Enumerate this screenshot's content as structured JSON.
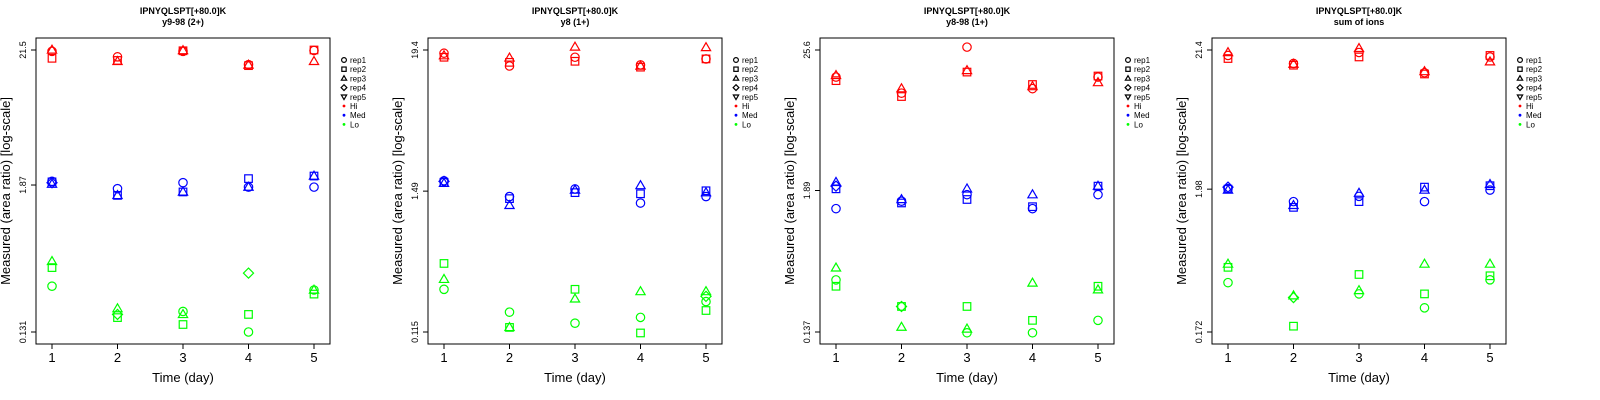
{
  "colors": {
    "Hi": "#ff0000",
    "Med": "#0000ff",
    "Lo": "#00ff00"
  },
  "legend": {
    "reps": [
      {
        "label": "rep1",
        "shape": "circle"
      },
      {
        "label": "rep2",
        "shape": "square"
      },
      {
        "label": "rep3",
        "shape": "triangle-up"
      },
      {
        "label": "rep4",
        "shape": "diamond"
      },
      {
        "label": "rep5",
        "shape": "triangle-down"
      }
    ],
    "groups": [
      {
        "label": "Hi",
        "color_key": "Hi"
      },
      {
        "label": "Med",
        "color_key": "Med"
      },
      {
        "label": "Lo",
        "color_key": "Lo"
      }
    ]
  },
  "chart_data": [
    {
      "type": "scatter",
      "title": "IPNYQLSPT[+80.0]K",
      "subtitle": "y9-98 (2+)",
      "xlabel": "Time (day)",
      "ylabel": "Measured (area ratio) [log-scale]",
      "yscale": "log",
      "ylim": [
        0.131,
        21.5
      ],
      "yticks": [
        {
          "value": 0.131,
          "label": "0.131"
        },
        {
          "value": 1.87,
          "label": "1.87"
        },
        {
          "value": 21.5,
          "label": "21.5"
        }
      ],
      "x": [
        1,
        2,
        3,
        4,
        5
      ],
      "grid": false,
      "legend_position": "right",
      "series": [
        {
          "group": "Hi",
          "rep": "rep1",
          "values": [
            21.0,
            19.0,
            21.0,
            16.5,
            21.3
          ]
        },
        {
          "group": "Hi",
          "rep": "rep2",
          "values": [
            18.5,
            17.8,
            21.2,
            16.2,
            21.5
          ]
        },
        {
          "group": "Hi",
          "rep": "rep3",
          "values": [
            21.5,
            17.5,
            21.3,
            16.4,
            17.5
          ]
        },
        {
          "group": "Med",
          "rep": "rep1",
          "values": [
            2.0,
            1.75,
            1.95,
            1.8,
            1.8
          ]
        },
        {
          "group": "Med",
          "rep": "rep2",
          "values": [
            1.98,
            1.55,
            1.65,
            2.1,
            2.2
          ]
        },
        {
          "group": "Med",
          "rep": "rep3",
          "values": [
            1.9,
            1.55,
            1.65,
            1.8,
            2.2
          ]
        },
        {
          "group": "Med",
          "rep": "rep4",
          "values": [
            1.95,
            null,
            null,
            null,
            null
          ]
        },
        {
          "group": "Lo",
          "rep": "rep1",
          "values": [
            0.3,
            null,
            0.19,
            0.131,
            0.28
          ]
        },
        {
          "group": "Lo",
          "rep": "rep2",
          "values": [
            0.42,
            0.17,
            0.15,
            0.18,
            0.26
          ]
        },
        {
          "group": "Lo",
          "rep": "rep3",
          "values": [
            0.47,
            0.2,
            0.18,
            null,
            0.28
          ]
        },
        {
          "group": "Lo",
          "rep": "rep4",
          "values": [
            null,
            0.18,
            null,
            0.38,
            null
          ]
        }
      ]
    },
    {
      "type": "scatter",
      "title": "IPNYQLSPT[+80.0]K",
      "subtitle": "y8 (1+)",
      "xlabel": "Time (day)",
      "ylabel": "Measured (area ratio) [log-scale]",
      "yscale": "log",
      "ylim": [
        0.115,
        19.4
      ],
      "yticks": [
        {
          "value": 0.115,
          "label": "0.115"
        },
        {
          "value": 1.49,
          "label": "1.49"
        },
        {
          "value": 19.4,
          "label": "19.4"
        }
      ],
      "x": [
        1,
        2,
        3,
        4,
        5
      ],
      "grid": false,
      "legend_position": "right",
      "series": [
        {
          "group": "Hi",
          "rep": "rep1",
          "values": [
            18.3,
            14.5,
            17.0,
            14.8,
            16.5
          ]
        },
        {
          "group": "Hi",
          "rep": "rep2",
          "values": [
            17.0,
            15.5,
            15.8,
            14.2,
            16.5
          ]
        },
        {
          "group": "Hi",
          "rep": "rep3",
          "values": [
            17.5,
            16.8,
            20.5,
            14.5,
            20.3
          ]
        },
        {
          "group": "Med",
          "rep": "rep1",
          "values": [
            1.8,
            1.35,
            1.55,
            1.2,
            1.35
          ]
        },
        {
          "group": "Med",
          "rep": "rep2",
          "values": [
            1.75,
            1.3,
            1.45,
            1.42,
            1.5
          ]
        },
        {
          "group": "Med",
          "rep": "rep3",
          "values": [
            1.72,
            1.15,
            1.52,
            1.65,
            1.45
          ]
        },
        {
          "group": "Med",
          "rep": "rep4",
          "values": [
            1.78,
            null,
            null,
            null,
            null
          ]
        },
        {
          "group": "Lo",
          "rep": "rep1",
          "values": [
            0.25,
            0.165,
            0.135,
            0.15,
            0.2
          ]
        },
        {
          "group": "Lo",
          "rep": "rep2",
          "values": [
            0.4,
            0.125,
            0.25,
            0.113,
            0.17
          ]
        },
        {
          "group": "Lo",
          "rep": "rep3",
          "values": [
            0.3,
            0.125,
            0.21,
            0.24,
            0.24
          ]
        },
        {
          "group": "Lo",
          "rep": "rep4",
          "values": [
            null,
            null,
            null,
            null,
            0.22
          ]
        }
      ]
    },
    {
      "type": "scatter",
      "title": "IPNYQLSPT[+80.0]K",
      "subtitle": "y8-98 (1+)",
      "xlabel": "Time (day)",
      "ylabel": "Measured (area ratio) [log-scale]",
      "yscale": "log",
      "ylim": [
        0.137,
        25.6
      ],
      "yticks": [
        {
          "value": 0.137,
          "label": "0.137"
        },
        {
          "value": 1.89,
          "label": "1.89"
        },
        {
          "value": 25.6,
          "label": "25.6"
        }
      ],
      "x": [
        1,
        2,
        3,
        4,
        5
      ],
      "grid": false,
      "legend_position": "right",
      "series": [
        {
          "group": "Hi",
          "rep": "rep1",
          "values": [
            15.5,
            11.5,
            27.0,
            12.5,
            15.5
          ]
        },
        {
          "group": "Hi",
          "rep": "rep2",
          "values": [
            14.5,
            10.8,
            17.0,
            13.5,
            15.8
          ]
        },
        {
          "group": "Hi",
          "rep": "rep3",
          "values": [
            16.0,
            12.5,
            17.5,
            13.0,
            14.0
          ]
        },
        {
          "group": "Med",
          "rep": "rep1",
          "values": [
            1.35,
            1.55,
            1.75,
            1.35,
            1.75
          ]
        },
        {
          "group": "Med",
          "rep": "rep2",
          "values": [
            1.95,
            1.5,
            1.6,
            1.4,
            2.05
          ]
        },
        {
          "group": "Med",
          "rep": "rep3",
          "values": [
            2.2,
            1.6,
            1.95,
            1.75,
            2.05
          ]
        },
        {
          "group": "Med",
          "rep": "rep4",
          "values": [
            2.05,
            null,
            null,
            null,
            null
          ]
        },
        {
          "group": "Lo",
          "rep": "rep1",
          "values": [
            0.36,
            null,
            0.135,
            0.135,
            0.17
          ]
        },
        {
          "group": "Lo",
          "rep": "rep2",
          "values": [
            0.32,
            0.22,
            0.22,
            0.17,
            0.32
          ]
        },
        {
          "group": "Lo",
          "rep": "rep3",
          "values": [
            0.45,
            0.15,
            0.145,
            0.34,
            0.3
          ]
        },
        {
          "group": "Lo",
          "rep": "rep4",
          "values": [
            null,
            0.22,
            null,
            null,
            null
          ]
        }
      ]
    },
    {
      "type": "scatter",
      "title": "IPNYQLSPT[+80.0]K",
      "subtitle": "sum of ions",
      "xlabel": "Time (day)",
      "ylabel": "Measured (area ratio) [log-scale]",
      "yscale": "log",
      "ylim": [
        0.172,
        21.4
      ],
      "yticks": [
        {
          "value": 0.172,
          "label": "0.172"
        },
        {
          "value": 1.98,
          "label": "1.98"
        },
        {
          "value": 21.4,
          "label": "21.4"
        }
      ],
      "x": [
        1,
        2,
        3,
        4,
        5
      ],
      "grid": false,
      "legend_position": "right",
      "series": [
        {
          "group": "Hi",
          "rep": "rep1",
          "values": [
            19.5,
            17.0,
            20.5,
            14.5,
            19.0
          ]
        },
        {
          "group": "Hi",
          "rep": "rep2",
          "values": [
            18.5,
            16.5,
            19.0,
            14.2,
            19.5
          ]
        },
        {
          "group": "Hi",
          "rep": "rep3",
          "values": [
            20.5,
            16.8,
            22.0,
            14.8,
            17.5
          ]
        },
        {
          "group": "Med",
          "rep": "rep1",
          "values": [
            2.0,
            1.6,
            1.75,
            1.6,
            1.95
          ]
        },
        {
          "group": "Med",
          "rep": "rep2",
          "values": [
            1.98,
            1.45,
            1.6,
            2.05,
            2.1
          ]
        },
        {
          "group": "Med",
          "rep": "rep3",
          "values": [
            1.95,
            1.5,
            1.85,
            1.95,
            2.15
          ]
        },
        {
          "group": "Med",
          "rep": "rep4",
          "values": [
            2.05,
            null,
            null,
            null,
            null
          ]
        },
        {
          "group": "Lo",
          "rep": "rep1",
          "values": [
            0.4,
            null,
            0.33,
            0.26,
            0.42
          ]
        },
        {
          "group": "Lo",
          "rep": "rep2",
          "values": [
            0.52,
            0.19,
            0.46,
            0.33,
            0.45
          ]
        },
        {
          "group": "Lo",
          "rep": "rep3",
          "values": [
            0.55,
            0.32,
            0.35,
            0.55,
            0.55
          ]
        },
        {
          "group": "Lo",
          "rep": "rep4",
          "values": [
            null,
            0.31,
            null,
            null,
            null
          ]
        }
      ]
    }
  ]
}
